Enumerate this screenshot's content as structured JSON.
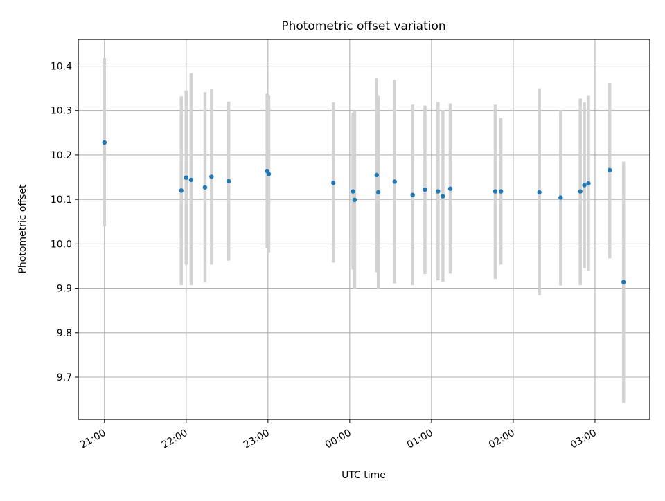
{
  "chart_data": {
    "type": "scatter",
    "title": "Photometric offset variation",
    "xlabel": "UTC time",
    "ylabel": "Photometric offset",
    "x_unit": "hours UTC (tick labels wrap past midnight)",
    "x_ticks": [
      {
        "value": 21,
        "label": "21:00"
      },
      {
        "value": 22,
        "label": "22:00"
      },
      {
        "value": 23,
        "label": "23:00"
      },
      {
        "value": 24,
        "label": "00:00"
      },
      {
        "value": 25,
        "label": "01:00"
      },
      {
        "value": 26,
        "label": "02:00"
      },
      {
        "value": 27,
        "label": "03:00"
      }
    ],
    "y_ticks": [
      {
        "value": 9.7,
        "label": "9.7"
      },
      {
        "value": 9.8,
        "label": "9.8"
      },
      {
        "value": 9.9,
        "label": "9.9"
      },
      {
        "value": 10.0,
        "label": "10.0"
      },
      {
        "value": 10.1,
        "label": "10.1"
      },
      {
        "value": 10.2,
        "label": "10.2"
      },
      {
        "value": 10.3,
        "label": "10.3"
      },
      {
        "value": 10.4,
        "label": "10.4"
      }
    ],
    "xlim": [
      20.68,
      27.67
    ],
    "ylim": [
      9.605,
      10.46
    ],
    "grid": true,
    "legend": "none",
    "colors": {
      "point": "#1f77b4",
      "errorbar": "#d3d3d3",
      "grid": "#b0b0b0"
    },
    "points": [
      {
        "x": 21.0,
        "y": 10.228,
        "ylo": 10.04,
        "yhi": 10.418
      },
      {
        "x": 21.94,
        "y": 10.12,
        "ylo": 9.907,
        "yhi": 10.332
      },
      {
        "x": 22.0,
        "y": 10.149,
        "ylo": 9.953,
        "yhi": 10.345
      },
      {
        "x": 22.06,
        "y": 10.144,
        "ylo": 9.907,
        "yhi": 10.384
      },
      {
        "x": 22.23,
        "y": 10.127,
        "ylo": 9.913,
        "yhi": 10.341
      },
      {
        "x": 22.31,
        "y": 10.151,
        "ylo": 9.953,
        "yhi": 10.349
      },
      {
        "x": 22.52,
        "y": 10.141,
        "ylo": 9.962,
        "yhi": 10.32
      },
      {
        "x": 22.99,
        "y": 10.164,
        "ylo": 9.99,
        "yhi": 10.338
      },
      {
        "x": 23.01,
        "y": 10.157,
        "ylo": 9.981,
        "yhi": 10.333
      },
      {
        "x": 23.8,
        "y": 10.137,
        "ylo": 9.958,
        "yhi": 10.318
      },
      {
        "x": 24.04,
        "y": 10.118,
        "ylo": 9.942,
        "yhi": 10.295
      },
      {
        "x": 24.06,
        "y": 10.099,
        "ylo": 9.899,
        "yhi": 10.3
      },
      {
        "x": 24.33,
        "y": 10.155,
        "ylo": 9.936,
        "yhi": 10.374
      },
      {
        "x": 24.35,
        "y": 10.116,
        "ylo": 9.899,
        "yhi": 10.333
      },
      {
        "x": 24.55,
        "y": 10.14,
        "ylo": 9.911,
        "yhi": 10.369
      },
      {
        "x": 24.77,
        "y": 10.11,
        "ylo": 9.907,
        "yhi": 10.313
      },
      {
        "x": 24.92,
        "y": 10.122,
        "ylo": 9.932,
        "yhi": 10.311
      },
      {
        "x": 25.08,
        "y": 10.118,
        "ylo": 9.918,
        "yhi": 10.319
      },
      {
        "x": 25.14,
        "y": 10.107,
        "ylo": 9.915,
        "yhi": 10.301
      },
      {
        "x": 25.23,
        "y": 10.124,
        "ylo": 9.933,
        "yhi": 10.316
      },
      {
        "x": 25.78,
        "y": 10.118,
        "ylo": 9.921,
        "yhi": 10.313
      },
      {
        "x": 25.85,
        "y": 10.118,
        "ylo": 9.953,
        "yhi": 10.283
      },
      {
        "x": 26.32,
        "y": 10.116,
        "ylo": 9.884,
        "yhi": 10.35
      },
      {
        "x": 26.58,
        "y": 10.104,
        "ylo": 9.906,
        "yhi": 10.301
      },
      {
        "x": 26.82,
        "y": 10.118,
        "ylo": 9.907,
        "yhi": 10.327
      },
      {
        "x": 26.87,
        "y": 10.132,
        "ylo": 9.945,
        "yhi": 10.318
      },
      {
        "x": 26.92,
        "y": 10.136,
        "ylo": 9.939,
        "yhi": 10.333
      },
      {
        "x": 27.18,
        "y": 10.166,
        "ylo": 9.967,
        "yhi": 10.362
      },
      {
        "x": 27.35,
        "y": 9.914,
        "ylo": 9.642,
        "yhi": 10.185
      }
    ]
  }
}
